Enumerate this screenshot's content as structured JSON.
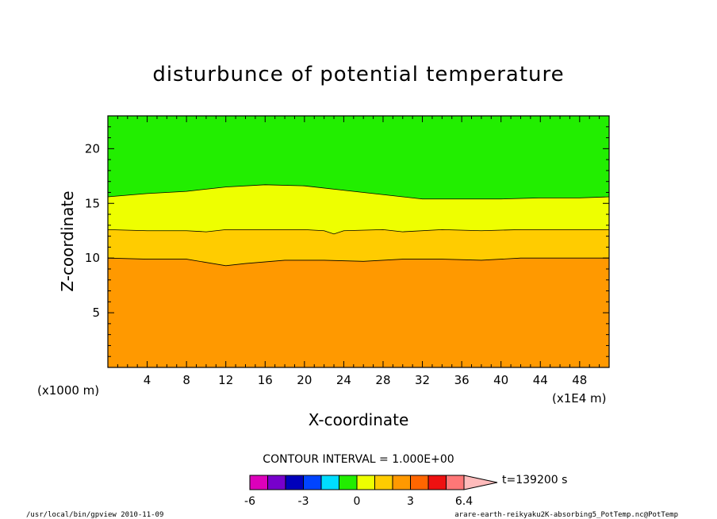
{
  "chart_data": {
    "type": "contour",
    "title": "disturbunce of potential temperature",
    "xlabel": "X-coordinate",
    "ylabel": "Z-coordinate",
    "x_unit_left": "(x1000 m)",
    "x_unit_right": "(x1E4 m)",
    "xlim": [
      0,
      51
    ],
    "ylim": [
      0,
      23
    ],
    "x_ticks": [
      4,
      8,
      12,
      16,
      20,
      24,
      28,
      32,
      36,
      40,
      44,
      48
    ],
    "y_ticks": [
      5,
      10,
      15,
      20
    ],
    "bands": [
      {
        "range": [
          1,
          2
        ],
        "color": "#ff9900"
      },
      {
        "range": [
          0,
          1
        ],
        "color": "#ffcc00"
      },
      {
        "range": [
          -1,
          0
        ],
        "color": "#eeff00"
      },
      {
        "range": [
          -2,
          -1
        ],
        "color": "#22ee00"
      }
    ],
    "contours": [
      {
        "x": [
          0,
          4,
          8,
          10,
          12,
          14,
          18,
          22,
          26,
          30,
          34,
          38,
          42,
          46,
          51
        ],
        "z": [
          10.0,
          9.9,
          9.9,
          9.6,
          9.3,
          9.5,
          9.8,
          9.8,
          9.7,
          9.9,
          9.9,
          9.8,
          10.0,
          10.0,
          10.0
        ]
      },
      {
        "x": [
          0,
          4,
          8,
          10,
          12,
          16,
          20,
          22,
          23,
          24,
          28,
          30,
          34,
          38,
          42,
          46,
          51
        ],
        "z": [
          12.6,
          12.5,
          12.5,
          12.4,
          12.6,
          12.6,
          12.6,
          12.5,
          12.2,
          12.5,
          12.6,
          12.4,
          12.6,
          12.5,
          12.6,
          12.6,
          12.6
        ]
      },
      {
        "x": [
          0,
          4,
          8,
          12,
          16,
          20,
          24,
          28,
          32,
          36,
          40,
          44,
          48,
          51
        ],
        "z": [
          15.6,
          15.9,
          16.1,
          16.5,
          16.7,
          16.6,
          16.2,
          15.8,
          15.4,
          15.4,
          15.4,
          15.5,
          15.5,
          15.6
        ]
      }
    ],
    "contour_interval_text": "CONTOUR INTERVAL = 1.000E+00",
    "time_label": "t=139200 s",
    "colorbar": {
      "colors": [
        "#dd00bb",
        "#7700cc",
        "#0000bb",
        "#0044ff",
        "#00ddff",
        "#22ee00",
        "#eeff00",
        "#ffcc00",
        "#ff9900",
        "#ff6600",
        "#ee1111",
        "#ff7777",
        "#ffbbbb"
      ],
      "tick_labels": [
        "-6",
        "-3",
        "0",
        "3",
        "6.4"
      ]
    },
    "footer_left": "/usr/local/bin/gpview  2010-11-09",
    "footer_right": "arare-earth-reikyaku2K-absorbing5_PotTemp.nc@PotTemp",
    "grid": false,
    "legend": "colorbar-bottom"
  }
}
